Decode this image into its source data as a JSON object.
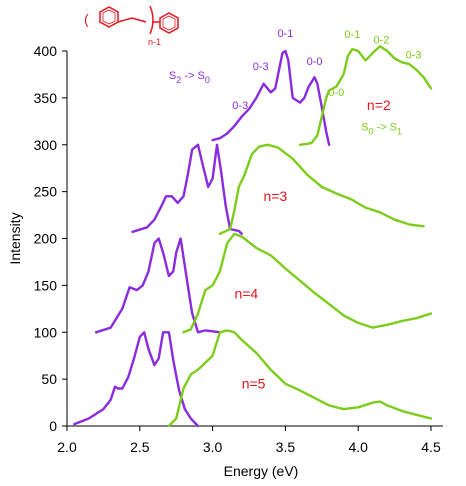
{
  "chart_data": {
    "type": "line",
    "xlabel": "Energy (eV)",
    "ylabel": "Intensity",
    "xlim": [
      2.0,
      4.5
    ],
    "ylim": [
      0,
      400
    ],
    "x_ticks": [
      "2.0",
      "2.5",
      "3.0",
      "3.5",
      "4.0",
      "4.5"
    ],
    "y_ticks": [
      "0",
      "50",
      "100",
      "150",
      "200",
      "250",
      "300",
      "350",
      "400"
    ],
    "colors": {
      "emission": "#8a2be2",
      "absorption": "#7ccd1a",
      "label": "#e8141e",
      "axis": "#000000"
    },
    "series": [
      {
        "group": "n=2",
        "kind": "emission",
        "color": "#8a2be2",
        "x": [
          3.0,
          3.05,
          3.1,
          3.15,
          3.2,
          3.25,
          3.3,
          3.35,
          3.4,
          3.43,
          3.45,
          3.48,
          3.5,
          3.52,
          3.55,
          3.6,
          3.63,
          3.66,
          3.7,
          3.72,
          3.75,
          3.78,
          3.8
        ],
        "y": [
          305,
          307,
          312,
          320,
          330,
          338,
          350,
          365,
          356,
          360,
          375,
          398,
          400,
          390,
          350,
          345,
          350,
          362,
          372,
          365,
          340,
          314,
          300
        ]
      },
      {
        "group": "n=2",
        "kind": "absorption",
        "color": "#7ccd1a",
        "x": [
          3.6,
          3.65,
          3.68,
          3.72,
          3.75,
          3.78,
          3.8,
          3.85,
          3.9,
          3.93,
          3.96,
          4.0,
          4.05,
          4.1,
          4.15,
          4.2,
          4.25,
          4.3,
          4.35,
          4.4,
          4.45,
          4.5
        ],
        "y": [
          300,
          301,
          302,
          310,
          330,
          350,
          358,
          362,
          375,
          395,
          402,
          400,
          390,
          398,
          405,
          400,
          392,
          388,
          386,
          380,
          372,
          360
        ]
      },
      {
        "group": "n=3",
        "kind": "emission",
        "color": "#8a2be2",
        "x": [
          2.45,
          2.55,
          2.6,
          2.65,
          2.68,
          2.72,
          2.76,
          2.8,
          2.83,
          2.86,
          2.9,
          2.93,
          2.97,
          3.0,
          3.03,
          3.06,
          3.09,
          3.12,
          3.18,
          3.2
        ],
        "y": [
          207,
          212,
          220,
          235,
          245,
          245,
          238,
          245,
          268,
          295,
          300,
          280,
          255,
          264,
          300,
          270,
          235,
          210,
          208,
          205
        ]
      },
      {
        "group": "n=3",
        "kind": "absorption",
        "color": "#7ccd1a",
        "x": [
          3.05,
          3.12,
          3.15,
          3.18,
          3.22,
          3.27,
          3.32,
          3.38,
          3.45,
          3.55,
          3.65,
          3.75,
          3.85,
          3.95,
          4.05,
          4.15,
          4.25,
          4.35,
          4.45
        ],
        "y": [
          205,
          210,
          230,
          255,
          268,
          290,
          298,
          300,
          297,
          285,
          268,
          255,
          248,
          242,
          233,
          228,
          220,
          215,
          213
        ]
      },
      {
        "group": "n=4",
        "kind": "emission",
        "color": "#8a2be2",
        "x": [
          2.2,
          2.3,
          2.38,
          2.43,
          2.48,
          2.52,
          2.56,
          2.6,
          2.63,
          2.66,
          2.7,
          2.73,
          2.75,
          2.78,
          2.8,
          2.83,
          2.86,
          2.9,
          2.95,
          3.0,
          3.05
        ],
        "y": [
          100,
          105,
          125,
          148,
          145,
          150,
          165,
          195,
          200,
          185,
          160,
          165,
          185,
          200,
          180,
          150,
          120,
          100,
          102,
          101,
          100
        ]
      },
      {
        "group": "n=4",
        "kind": "absorption",
        "color": "#7ccd1a",
        "x": [
          2.8,
          2.85,
          2.9,
          2.95,
          3.0,
          3.05,
          3.1,
          3.15,
          3.2,
          3.3,
          3.4,
          3.5,
          3.6,
          3.7,
          3.8,
          3.9,
          4.0,
          4.1,
          4.2,
          4.3,
          4.4,
          4.5
        ],
        "y": [
          100,
          103,
          120,
          145,
          150,
          165,
          195,
          205,
          202,
          190,
          182,
          168,
          155,
          142,
          130,
          118,
          110,
          105,
          108,
          112,
          115,
          120
        ]
      },
      {
        "group": "n=5",
        "kind": "emission",
        "color": "#8a2be2",
        "x": [
          2.05,
          2.15,
          2.25,
          2.3,
          2.33,
          2.35,
          2.38,
          2.42,
          2.46,
          2.5,
          2.53,
          2.56,
          2.6,
          2.63,
          2.66,
          2.7,
          2.73,
          2.77,
          2.81,
          2.85,
          2.9
        ],
        "y": [
          2,
          8,
          18,
          28,
          42,
          40,
          40,
          52,
          72,
          95,
          100,
          82,
          65,
          72,
          100,
          100,
          70,
          38,
          18,
          8,
          0
        ]
      },
      {
        "group": "n=5",
        "kind": "absorption",
        "color": "#7ccd1a",
        "x": [
          2.7,
          2.75,
          2.8,
          2.85,
          2.9,
          3.0,
          3.05,
          3.1,
          3.15,
          3.2,
          3.3,
          3.4,
          3.5,
          3.6,
          3.7,
          3.8,
          3.9,
          4.0,
          4.1,
          4.15,
          4.2,
          4.3,
          4.4,
          4.5
        ],
        "y": [
          0,
          8,
          40,
          55,
          60,
          75,
          100,
          102,
          100,
          92,
          78,
          60,
          45,
          38,
          30,
          22,
          18,
          20,
          25,
          26,
          22,
          16,
          12,
          8
        ]
      }
    ],
    "annotations": [
      {
        "text": "0-1",
        "x": 3.5,
        "y": 415,
        "color": "#8a2be2"
      },
      {
        "text": "0-3",
        "x": 3.33,
        "y": 380,
        "color": "#8a2be2"
      },
      {
        "text": "0-0",
        "x": 3.7,
        "y": 385,
        "color": "#8a2be2"
      },
      {
        "text": "0-3",
        "x": 3.19,
        "y": 338,
        "color": "#8a2be2"
      },
      {
        "text": "0-1",
        "x": 3.96,
        "y": 414,
        "color": "#7ccd1a"
      },
      {
        "text": "0-2",
        "x": 4.16,
        "y": 408,
        "color": "#7ccd1a"
      },
      {
        "text": "0-3",
        "x": 4.38,
        "y": 392,
        "color": "#7ccd1a"
      },
      {
        "text": "0-0",
        "x": 3.85,
        "y": 352,
        "color": "#7ccd1a"
      }
    ],
    "group_labels": [
      {
        "text": "n=2",
        "x": 4.06,
        "y": 337
      },
      {
        "text": "n=3",
        "x": 3.35,
        "y": 240
      },
      {
        "text": "n=4",
        "x": 3.15,
        "y": 136
      },
      {
        "text": "n=5",
        "x": 3.2,
        "y": 40
      }
    ],
    "transition_labels": [
      {
        "text": "S",
        "sub1": "2",
        "mid": " -> S",
        "sub2": "0",
        "x": 2.7,
        "y": 370,
        "color": "#8a2be2"
      },
      {
        "text": "S",
        "sub1": "0",
        "mid": " -> S",
        "sub2": "1",
        "x": 4.02,
        "y": 315,
        "color": "#7ccd1a"
      }
    ],
    "structure": {
      "left_paren": "(",
      "subscript": "n-1",
      "color": "#e8141e"
    }
  }
}
